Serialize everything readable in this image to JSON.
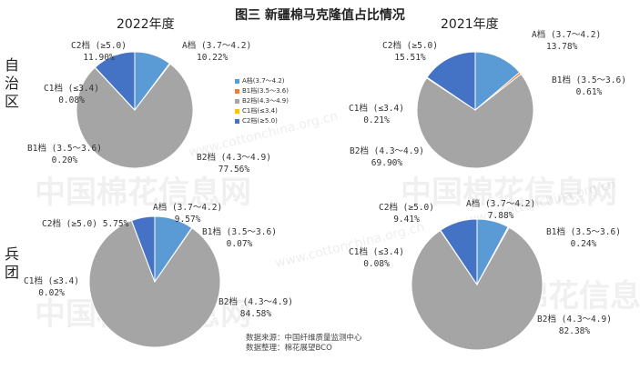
{
  "title": "图三 新疆棉马克隆值占比情况",
  "years": [
    "2022年度",
    "2021年度"
  ],
  "rows": [
    "自治区",
    "兵团"
  ],
  "colors": {
    "A": "#5b9bd5",
    "B1": "#ed7d31",
    "B2": "#a5a5a5",
    "C1": "#ffc000",
    "C2": "#4472c4"
  },
  "legend": [
    {
      "key": "A",
      "label": "A档(3.7～4.2)"
    },
    {
      "key": "B1",
      "label": "B1档(3.5～3.6)"
    },
    {
      "key": "B2",
      "label": "B2档(4.3～4.9)"
    },
    {
      "key": "C1",
      "label": "C1档(≤3.4)"
    },
    {
      "key": "C2",
      "label": "C2档(≥5.0)"
    }
  ],
  "watermark": {
    "brand": "中国棉花信息网",
    "url": "www.cottonchina.org.cn"
  },
  "source": {
    "line1": "数据来源：中国纤维质量监测中心",
    "line2": "数据整理：棉花展望BCO"
  },
  "chart_data": [
    {
      "type": "pie",
      "title": "2022年度",
      "row": "自治区",
      "categories": [
        "A档 (3.7～4.2)",
        "B1档 (3.5～3.6)",
        "B2档 (4.3～4.9)",
        "C1档 (≤3.4)",
        "C2档 (≥5.0)"
      ],
      "keys": [
        "A",
        "B1",
        "B2",
        "C1",
        "C2"
      ],
      "values": [
        10.22,
        0.2,
        77.56,
        0.08,
        11.9
      ],
      "labels": [
        "10.22%",
        "0.20%",
        "77.56%",
        "0.08%",
        "11.90%"
      ],
      "legend": "right"
    },
    {
      "type": "pie",
      "title": "2021年度",
      "row": "自治区",
      "categories": [
        "A档 (3.7～4.2)",
        "B1档 (3.5～3.6)",
        "B2档 (4.3～4.9)",
        "C1档 (≤3.4)",
        "C2档 (≥5.0)"
      ],
      "keys": [
        "A",
        "B1",
        "B2",
        "C1",
        "C2"
      ],
      "values": [
        13.78,
        0.61,
        69.9,
        0.21,
        15.51
      ],
      "labels": [
        "13.78%",
        "0.61%",
        "69.90%",
        "0.21%",
        "15.51%"
      ]
    },
    {
      "type": "pie",
      "title": "2022年度",
      "row": "兵团",
      "categories": [
        "A档 (3.7～4.2)",
        "B1档 (3.5～3.6)",
        "B2档 (4.3～4.9)",
        "C1档 (≤3.4)",
        "C2档 (≥5.0)"
      ],
      "keys": [
        "A",
        "B1",
        "B2",
        "C1",
        "C2"
      ],
      "values": [
        9.57,
        0.07,
        84.58,
        0.02,
        5.75
      ],
      "labels": [
        "9.57%",
        "0.07%",
        "84.58%",
        "0.02%",
        "5.75%"
      ]
    },
    {
      "type": "pie",
      "title": "2021年度",
      "row": "兵团",
      "categories": [
        "A档 (3.7～4.2)",
        "B1档 (3.5～3.6)",
        "B2档 (4.3～4.9)",
        "C1档 (≤3.4)",
        "C2档 (≥5.0)"
      ],
      "keys": [
        "A",
        "B1",
        "B2",
        "C1",
        "C2"
      ],
      "values": [
        7.88,
        0.24,
        82.38,
        0.08,
        9.41
      ],
      "labels": [
        "7.88%",
        "0.24%",
        "82.38%",
        "0.08%",
        "9.41%"
      ]
    }
  ]
}
